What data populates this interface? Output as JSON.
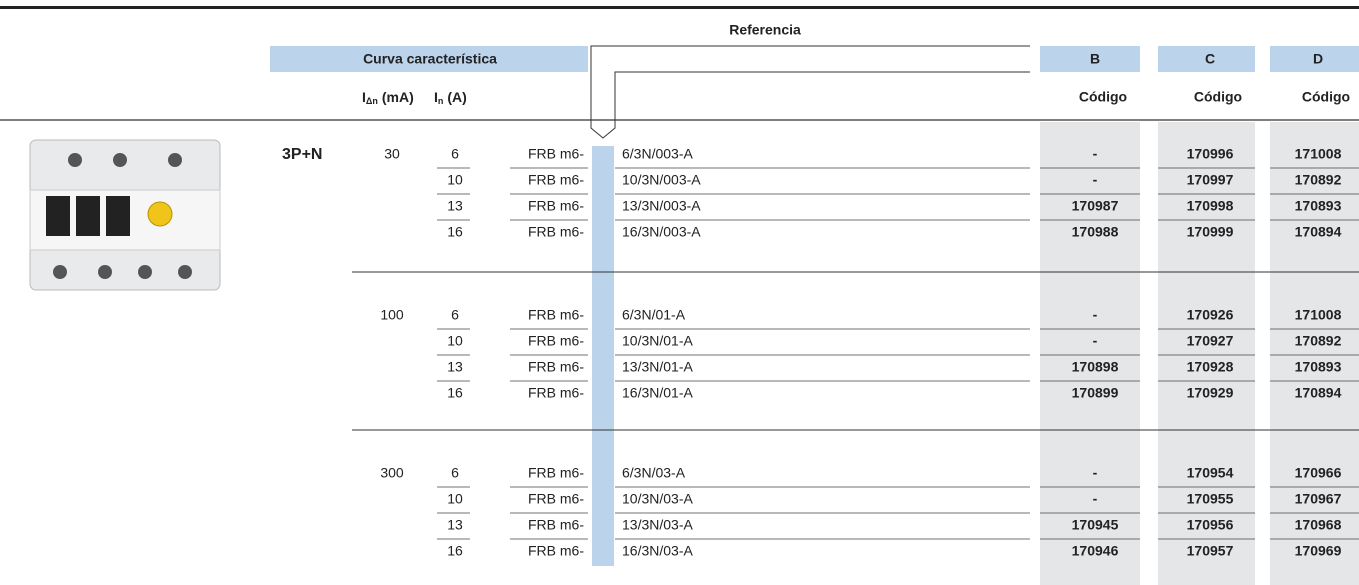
{
  "header": {
    "title": "Referencia",
    "curve_label": "Curva característica",
    "idn_label": {
      "main": "I",
      "sub": "Δn",
      "unit": "(mA)"
    },
    "in_label": {
      "main": "I",
      "sub": "n",
      "unit": "(A)"
    },
    "columns": [
      {
        "name": "B",
        "code_label": "Código"
      },
      {
        "name": "C",
        "code_label": "Código"
      },
      {
        "name": "D",
        "code_label": "Código"
      }
    ]
  },
  "poles": "3P+N",
  "groups": [
    {
      "idn": "30",
      "rows": [
        {
          "in": "6",
          "prefix": "FRB m6-",
          "suffix": "6/3N/003-A",
          "codes": [
            "-",
            "170996",
            "171008"
          ]
        },
        {
          "in": "10",
          "prefix": "FRB m6-",
          "suffix": "10/3N/003-A",
          "codes": [
            "-",
            "170997",
            "170892"
          ]
        },
        {
          "in": "13",
          "prefix": "FRB m6-",
          "suffix": "13/3N/003-A",
          "codes": [
            "170987",
            "170998",
            "170893"
          ]
        },
        {
          "in": "16",
          "prefix": "FRB m6-",
          "suffix": "16/3N/003-A",
          "codes": [
            "170988",
            "170999",
            "170894"
          ]
        }
      ]
    },
    {
      "idn": "100",
      "rows": [
        {
          "in": "6",
          "prefix": "FRB m6-",
          "suffix": "6/3N/01-A",
          "codes": [
            "-",
            "170926",
            "171008"
          ]
        },
        {
          "in": "10",
          "prefix": "FRB m6-",
          "suffix": "10/3N/01-A",
          "codes": [
            "-",
            "170927",
            "170892"
          ]
        },
        {
          "in": "13",
          "prefix": "FRB m6-",
          "suffix": "13/3N/01-A",
          "codes": [
            "170898",
            "170928",
            "170893"
          ]
        },
        {
          "in": "16",
          "prefix": "FRB m6-",
          "suffix": "16/3N/01-A",
          "codes": [
            "170899",
            "170929",
            "170894"
          ]
        }
      ]
    },
    {
      "idn": "300",
      "rows": [
        {
          "in": "6",
          "prefix": "FRB m6-",
          "suffix": "6/3N/03-A",
          "codes": [
            "-",
            "170954",
            "170966"
          ]
        },
        {
          "in": "10",
          "prefix": "FRB m6-",
          "suffix": "10/3N/03-A",
          "codes": [
            "-",
            "170955",
            "170967"
          ]
        },
        {
          "in": "13",
          "prefix": "FRB m6-",
          "suffix": "13/3N/03-A",
          "codes": [
            "170945",
            "170956",
            "170968"
          ]
        },
        {
          "in": "16",
          "prefix": "FRB m6-",
          "suffix": "16/3N/03-A",
          "codes": [
            "170946",
            "170957",
            "170969"
          ]
        }
      ]
    }
  ]
}
